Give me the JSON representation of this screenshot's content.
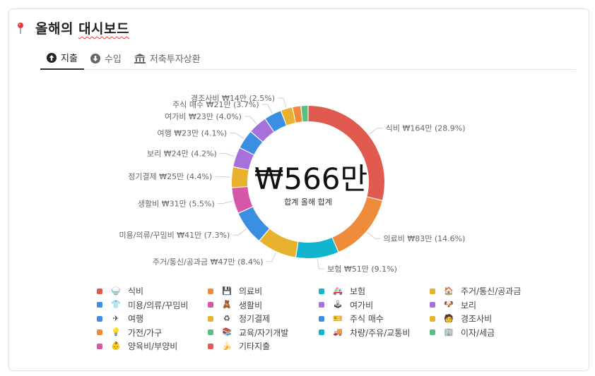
{
  "header": {
    "title_prefix": "올해의 ",
    "title_wavy": "대시보드"
  },
  "tabs": [
    {
      "label": "지출",
      "icon": "arrow-up-circle-icon",
      "active": true
    },
    {
      "label": "수입",
      "icon": "arrow-down-circle-icon",
      "active": false
    },
    {
      "label": "저축투자상환",
      "icon": "bank-icon",
      "active": false
    }
  ],
  "chart_data": {
    "type": "pie",
    "donut": true,
    "center": {
      "value": "₩566만",
      "label": "합계 올해 합계"
    },
    "slices": [
      {
        "name": "식비",
        "value_label": "₩164만",
        "pct": 28.9,
        "color": "#e05a4f"
      },
      {
        "name": "의료비",
        "value_label": "₩83만",
        "pct": 14.6,
        "color": "#ef8c3c"
      },
      {
        "name": "보험",
        "value_label": "₩51만",
        "pct": 9.1,
        "color": "#13b4cd"
      },
      {
        "name": "주거/통신/공과금",
        "value_label": "₩47만",
        "pct": 8.4,
        "color": "#e8b22e"
      },
      {
        "name": "미용/의류/꾸밈비",
        "value_label": "₩41만",
        "pct": 7.3,
        "color": "#3a8fe2"
      },
      {
        "name": "생활비",
        "value_label": "₩31만",
        "pct": 5.5,
        "color": "#d557a6"
      },
      {
        "name": "정기결제",
        "value_label": "₩25만",
        "pct": 4.4,
        "color": "#e8b22e"
      },
      {
        "name": "보리",
        "value_label": "₩24만",
        "pct": 4.2,
        "color": "#a771dc"
      },
      {
        "name": "여행",
        "value_label": "₩23만",
        "pct": 4.1,
        "color": "#3a8fe2"
      },
      {
        "name": "여가비",
        "value_label": "₩23만",
        "pct": 4.0,
        "color": "#a771dc"
      },
      {
        "name": "주식 매수",
        "value_label": "₩21만",
        "pct": 3.7,
        "color": "#3a8fe2"
      },
      {
        "name": "경조사비",
        "value_label": "₩14만",
        "pct": 2.5,
        "color": "#e8b22e"
      },
      {
        "name": "가전/가구",
        "value_label": "",
        "pct": 1.8,
        "color": "#ef8c3c"
      },
      {
        "name": "교육/자기개발",
        "value_label": "",
        "pct": 1.5,
        "color": "#5cbf82"
      }
    ]
  },
  "legend": [
    [
      {
        "label": "식비",
        "color": "#e05a4f",
        "icon": "bowl-icon",
        "glyph": "🍚"
      },
      {
        "label": "의료비",
        "color": "#ef8c3c",
        "icon": "floppy-icon",
        "glyph": "💾"
      },
      {
        "label": "보험",
        "color": "#13b4cd",
        "icon": "ambulance-icon",
        "glyph": "🚑"
      },
      {
        "label": "주거/통신/공과금",
        "color": "#e8b22e",
        "icon": "house-icon",
        "glyph": "🏠"
      }
    ],
    [
      {
        "label": "미용/의류/꾸밈비",
        "color": "#3a8fe2",
        "icon": "shirt-icon",
        "glyph": "👕"
      },
      {
        "label": "생활비",
        "color": "#d557a6",
        "icon": "bear-icon",
        "glyph": "🧸"
      },
      {
        "label": "여가비",
        "color": "#a771dc",
        "icon": "gamepad-icon",
        "glyph": "🕹"
      },
      {
        "label": "보리",
        "color": "#a771dc",
        "icon": "dog-icon",
        "glyph": "🐶"
      }
    ],
    [
      {
        "label": "여행",
        "color": "#3a8fe2",
        "icon": "airplane-icon",
        "glyph": "✈"
      },
      {
        "label": "정기결제",
        "color": "#e8b22e",
        "icon": "recycle-icon",
        "glyph": "♻"
      },
      {
        "label": "주식 매수",
        "color": "#3a8fe2",
        "icon": "ticket-icon",
        "glyph": "🎫"
      },
      {
        "label": "경조사비",
        "color": "#e8b22e",
        "icon": "person-icon",
        "glyph": "🧑"
      }
    ],
    [
      {
        "label": "가전/가구",
        "color": "#ef8c3c",
        "icon": "lightbulb-icon",
        "glyph": "💡"
      },
      {
        "label": "교육/자기개발",
        "color": "#5cbf82",
        "icon": "books-icon",
        "glyph": "📚"
      },
      {
        "label": "차량/주유/교통비",
        "color": "#13b4cd",
        "icon": "truck-icon",
        "glyph": "🚚"
      },
      {
        "label": "이자/세금",
        "color": "#5cbf82",
        "icon": "building-icon",
        "glyph": "🏢"
      }
    ],
    [
      {
        "label": "양육비/부양비",
        "color": "#d557a6",
        "icon": "baby-icon",
        "glyph": "👶"
      },
      {
        "label": "기타지출",
        "color": "#e05a4f",
        "icon": "banana-icon",
        "glyph": "🍌"
      }
    ]
  ]
}
